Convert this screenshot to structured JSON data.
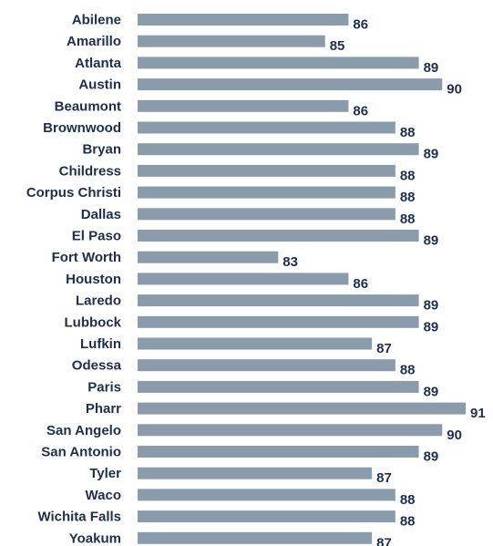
{
  "colors": {
    "bar": "#8a9bab",
    "text": "#1c2f4f"
  },
  "chart_data": {
    "type": "bar",
    "orientation": "horizontal",
    "title": "",
    "xlabel": "",
    "ylabel": "",
    "grid": false,
    "legend": "none",
    "xlim": [
      77,
      91
    ],
    "categories": [
      "Abilene",
      "Amarillo",
      "Atlanta",
      "Austin",
      "Beaumont",
      "Brownwood",
      "Bryan",
      "Childress",
      "Corpus Christi",
      "Dallas",
      "El Paso",
      "Fort Worth",
      "Houston",
      "Laredo",
      "Lubbock",
      "Lufkin",
      "Odessa",
      "Paris",
      "Pharr",
      "San Angelo",
      "San  Antonio",
      "Tyler",
      "Waco",
      "Wichita Falls",
      "Yoakum"
    ],
    "values": [
      86,
      85,
      89,
      90,
      86,
      88,
      89,
      88,
      88,
      88,
      89,
      83,
      86,
      89,
      89,
      87,
      88,
      89,
      91,
      90,
      89,
      87,
      88,
      88,
      87
    ]
  }
}
